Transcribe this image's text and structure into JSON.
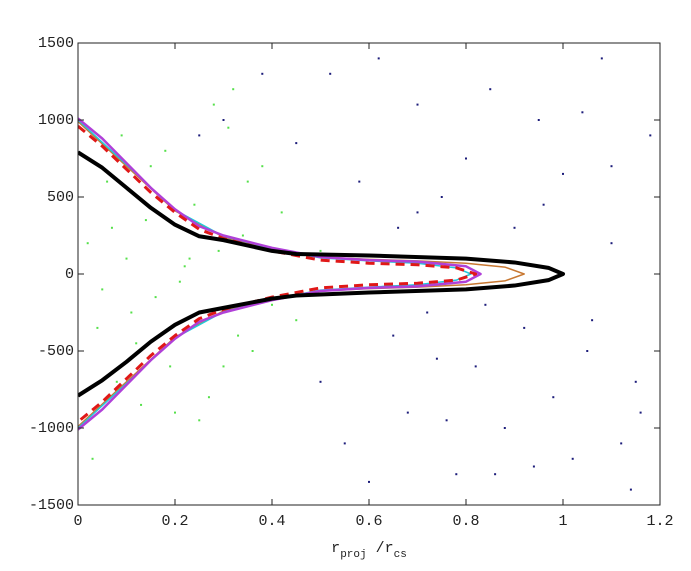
{
  "chart_data": {
    "type": "scatter",
    "xlabel": [
      {
        "text": "r"
      },
      {
        "text": "proj",
        "sub": true
      },
      {
        "text": " /r"
      },
      {
        "text": "cs",
        "sub": true
      }
    ],
    "xlim": [
      0,
      1.2
    ],
    "xticks": [
      0,
      0.2,
      0.4,
      0.6,
      0.8,
      1,
      1.2
    ],
    "ylim": [
      -1500,
      1500
    ],
    "yticks": [
      -1500,
      -1000,
      -500,
      0,
      500,
      1000,
      1500
    ],
    "grid": false,
    "series": [
      {
        "mode": "markers",
        "color": "#55e04a",
        "x": [
          0.02,
          0.04,
          0.06,
          0.08,
          0.1,
          0.12,
          0.14,
          0.16,
          0.18,
          0.2,
          0.22,
          0.24,
          0.26,
          0.28,
          0.3,
          0.32,
          0.34,
          0.36,
          0.38,
          0.4,
          0.05,
          0.09,
          0.13,
          0.17,
          0.21,
          0.25,
          0.29,
          0.33,
          0.31,
          0.35,
          0.03,
          0.07,
          0.11,
          0.15,
          0.19,
          0.23,
          0.27,
          0.42,
          0.45,
          0.5
        ],
        "values": [
          200,
          -350,
          600,
          -700,
          100,
          -450,
          350,
          -150,
          800,
          -900,
          50,
          450,
          -300,
          1100,
          -600,
          1200,
          250,
          -500,
          700,
          -200,
          -100,
          900,
          -850,
          500,
          -50,
          -950,
          150,
          -400,
          950,
          600,
          -1200,
          300,
          -250,
          700,
          -600,
          100,
          -800,
          400,
          -300,
          150
        ]
      },
      {
        "mode": "markers",
        "color": "#1c1c7a",
        "x": [
          0.25,
          0.3,
          0.38,
          0.45,
          0.5,
          0.55,
          0.58,
          0.62,
          0.65,
          0.68,
          0.7,
          0.72,
          0.75,
          0.78,
          0.8,
          0.82,
          0.85,
          0.88,
          0.9,
          0.92,
          0.95,
          0.98,
          1.0,
          1.02,
          1.05,
          1.08,
          1.1,
          1.12,
          1.15,
          1.18,
          0.6,
          0.66,
          0.74,
          0.84,
          0.94,
          1.04,
          1.14,
          0.52,
          0.76,
          0.96,
          1.06,
          1.16,
          0.86,
          0.7,
          1.1
        ],
        "values": [
          900,
          1000,
          1300,
          850,
          -700,
          -1100,
          600,
          1400,
          -400,
          -900,
          1100,
          -250,
          500,
          -1300,
          750,
          -600,
          1200,
          -1000,
          300,
          -350,
          1000,
          -800,
          650,
          -1200,
          -500,
          1400,
          200,
          -1100,
          -700,
          900,
          -1350,
          300,
          -550,
          -200,
          -1250,
          1050,
          -1400,
          1300,
          -950,
          450,
          -300,
          -900,
          -1300,
          400,
          700
        ]
      },
      {
        "mode": "line",
        "color": "#c87832",
        "width": 1.5,
        "x": [
          0,
          0.1,
          0.2,
          0.3,
          0.4,
          0.5,
          0.6,
          0.7,
          0.8,
          0.88,
          0.92,
          0.88,
          0.8,
          0.7,
          0.6,
          0.5,
          0.4,
          0.3,
          0.2,
          0.1,
          0
        ],
        "values": [
          990,
          700,
          410,
          240,
          160,
          110,
          95,
          85,
          70,
          45,
          0,
          -45,
          -70,
          -85,
          -95,
          -110,
          -160,
          -240,
          -410,
          -700,
          -990
        ]
      },
      {
        "mode": "line",
        "color": "#20c8d8",
        "width": 1.5,
        "x": [
          0,
          0.1,
          0.2,
          0.3,
          0.4,
          0.5,
          0.6,
          0.7,
          0.78,
          0.81,
          0.78,
          0.7,
          0.6,
          0.5,
          0.4,
          0.3,
          0.2,
          0.1,
          0
        ],
        "values": [
          1000,
          710,
          415,
          245,
          165,
          105,
          85,
          70,
          40,
          0,
          -40,
          -70,
          -85,
          -105,
          -165,
          -245,
          -415,
          -710,
          -1000
        ]
      },
      {
        "mode": "line",
        "color": "#b040d8",
        "width": 2.5,
        "x": [
          0,
          0.05,
          0.1,
          0.15,
          0.2,
          0.25,
          0.3,
          0.4,
          0.5,
          0.6,
          0.7,
          0.8,
          0.83,
          0.8,
          0.7,
          0.6,
          0.5,
          0.4,
          0.3,
          0.25,
          0.2,
          0.15,
          0.1,
          0.05,
          0
        ],
        "values": [
          1010,
          880,
          720,
          560,
          420,
          310,
          250,
          170,
          110,
          90,
          80,
          50,
          0,
          -50,
          -80,
          -90,
          -110,
          -170,
          -250,
          -310,
          -420,
          -560,
          -720,
          -880,
          -1010
        ]
      },
      {
        "mode": "line",
        "color": "#e01818",
        "width": 3,
        "dash": true,
        "x": [
          0,
          0.05,
          0.1,
          0.15,
          0.2,
          0.25,
          0.3,
          0.4,
          0.5,
          0.6,
          0.7,
          0.78,
          0.82,
          0.78,
          0.7,
          0.6,
          0.5,
          0.4,
          0.3,
          0.25,
          0.2,
          0.15,
          0.1,
          0.05,
          0
        ],
        "values": [
          960,
          830,
          680,
          530,
          400,
          290,
          230,
          150,
          90,
          70,
          60,
          40,
          0,
          -40,
          -60,
          -70,
          -90,
          -150,
          -230,
          -290,
          -400,
          -530,
          -680,
          -830,
          -960
        ]
      },
      {
        "mode": "line",
        "color": "#000000",
        "width": 4,
        "x": [
          0,
          0.05,
          0.1,
          0.15,
          0.2,
          0.25,
          0.3,
          0.4,
          0.45,
          0.6,
          0.8,
          0.9,
          0.97,
          1.0,
          0.97,
          0.9,
          0.8,
          0.6,
          0.45,
          0.4,
          0.3,
          0.25,
          0.2,
          0.15,
          0.1,
          0.05,
          0
        ],
        "values": [
          790,
          690,
          560,
          430,
          320,
          245,
          220,
          150,
          130,
          120,
          100,
          75,
          40,
          0,
          -40,
          -75,
          -100,
          -120,
          -140,
          -160,
          -220,
          -250,
          -330,
          -440,
          -570,
          -690,
          -790
        ]
      }
    ]
  }
}
